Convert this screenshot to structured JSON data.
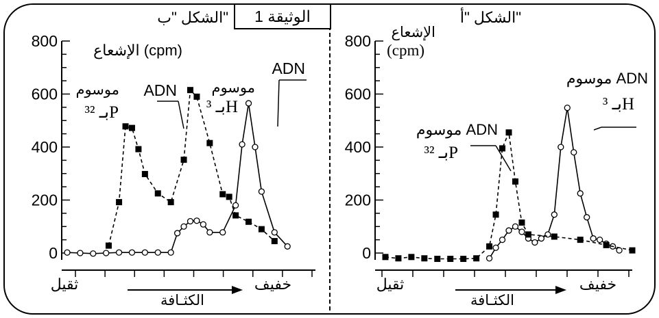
{
  "document_title": "الوثيقة 1",
  "chart_data": [
    {
      "type": "line",
      "panel": "right",
      "title": "الشكل \"أ\"",
      "ylabel_lines": [
        "الإشعاع",
        "(cpm)"
      ],
      "ylim": [
        0,
        800
      ],
      "yticks": [
        0,
        200,
        400,
        600,
        800
      ],
      "xlim": [
        0,
        19
      ],
      "x_axis_left_label": "ثقيل",
      "x_axis_right_label": "خفيف",
      "x_arrow_label": "الكثـافة",
      "series": [
        {
          "label_lines": [
            "موسوم ADN",
            "بـ ³H"
          ],
          "marker": "open-circle",
          "line_style": "solid",
          "x": [
            8,
            8.5,
            9,
            9.5,
            10,
            10.5,
            11,
            11.5,
            12,
            12.5,
            13,
            13.5,
            14,
            14.5,
            15,
            15.5,
            16,
            16.5,
            17,
            17.5,
            18
          ],
          "y": [
            -20,
            20,
            50,
            85,
            100,
            80,
            55,
            40,
            55,
            70,
            145,
            400,
            548,
            380,
            225,
            135,
            55,
            50,
            35,
            25,
            10
          ]
        },
        {
          "label_lines": [
            "موسوم ADN",
            "بـ ³²P"
          ],
          "marker": "filled-square",
          "line_style": "dashed",
          "x": [
            0,
            1,
            2,
            3,
            4,
            5,
            6,
            7,
            8,
            8.5,
            9,
            9.5,
            10,
            10.5,
            11,
            13,
            15,
            17,
            19
          ],
          "y": [
            -15,
            -20,
            -15,
            -20,
            -22,
            -22,
            -22,
            -20,
            25,
            145,
            395,
            455,
            270,
            115,
            70,
            62,
            50,
            30,
            10
          ]
        }
      ]
    },
    {
      "type": "line",
      "panel": "left",
      "title": "الشكل \"ب\"",
      "ylabel": "الإشعاع (cpm)",
      "ylim": [
        0,
        800
      ],
      "yticks": [
        0,
        200,
        400,
        600,
        800
      ],
      "xlim": [
        0,
        19
      ],
      "x_axis_left_label": "ثقيل",
      "x_axis_right_label": "خفيف",
      "x_arrow_label": "الكثـافة",
      "series": [
        {
          "label_lines": [
            "ADN",
            "موسوم",
            "بـ ³H"
          ],
          "marker": "open-circle",
          "line_style": "solid",
          "x": [
            0,
            1,
            2,
            3,
            4,
            5,
            6,
            7,
            8,
            8.5,
            9,
            9.5,
            10,
            10.5,
            11,
            12,
            13,
            13.5,
            14,
            14.5,
            15,
            16,
            17
          ],
          "y": [
            2,
            0,
            -2,
            0,
            2,
            2,
            2,
            2,
            2,
            75,
            100,
            120,
            122,
            108,
            78,
            78,
            180,
            410,
            565,
            400,
            232,
            78,
            25
          ]
        },
        {
          "label_lines": [
            "ADN",
            "موسوم",
            "بـ ³²P"
          ],
          "marker": "filled-square",
          "line_style": "dashed",
          "x": [
            3.2,
            4,
            4.5,
            5,
            5.5,
            6,
            7,
            8,
            9,
            9.5,
            10,
            11,
            12,
            12.5,
            13,
            14,
            15,
            16
          ],
          "y": [
            28,
            192,
            478,
            472,
            392,
            298,
            225,
            192,
            352,
            615,
            590,
            415,
            222,
            212,
            142,
            118,
            90,
            45
          ]
        }
      ]
    }
  ]
}
